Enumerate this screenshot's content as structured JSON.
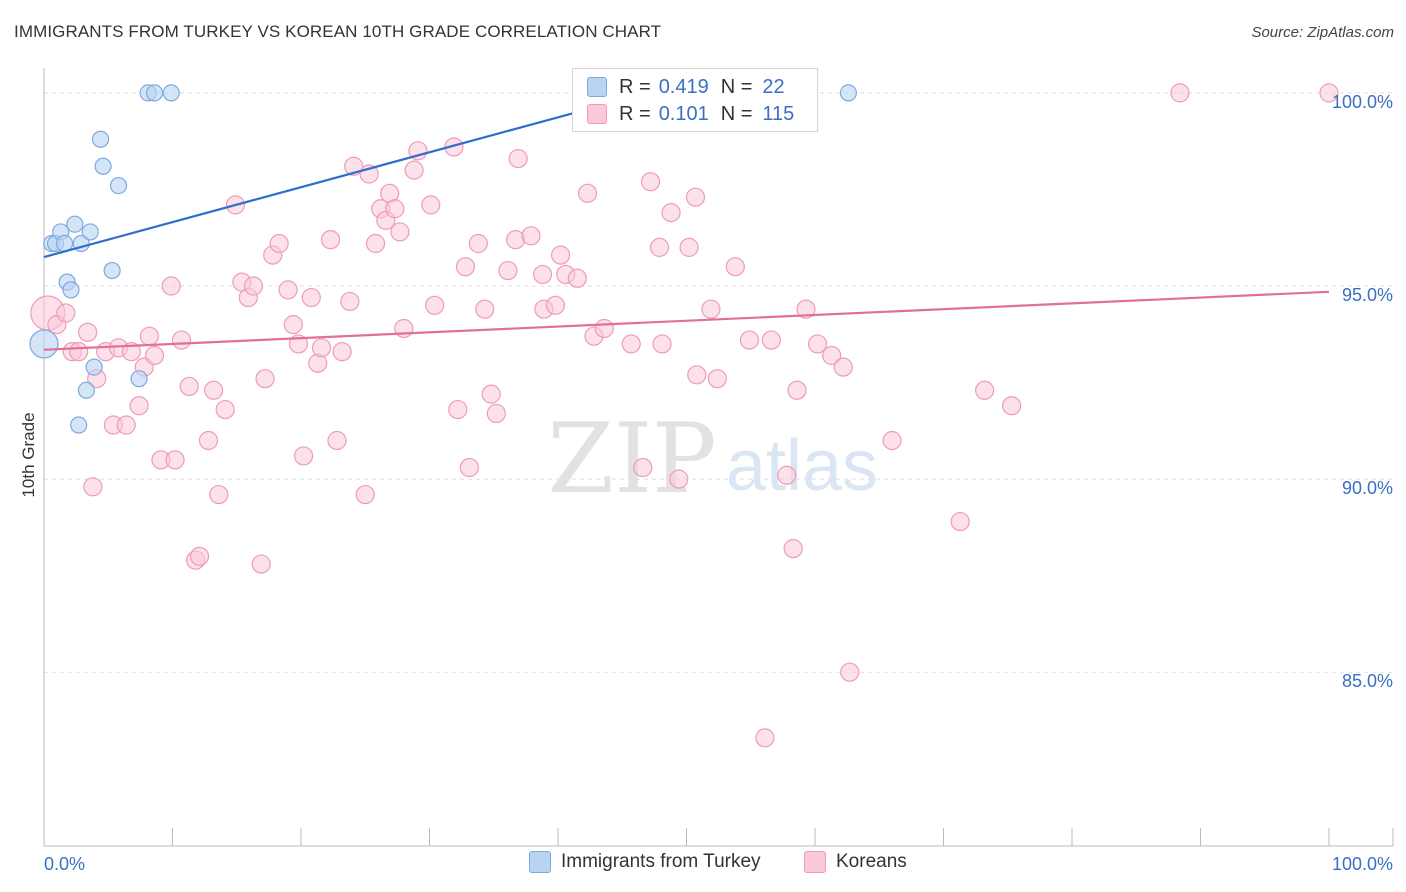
{
  "header": {
    "title": "IMMIGRANTS FROM TURKEY VS KOREAN 10TH GRADE CORRELATION CHART",
    "source": "Source: ZipAtlas.com"
  },
  "watermark": {
    "zip": "ZIP",
    "atlas": "atlas"
  },
  "stats": [
    {
      "r_label": "R =",
      "r_value": "0.419",
      "n_label": "N =",
      "n_value": "22"
    },
    {
      "r_label": "R =",
      "r_value": "0.101",
      "n_label": "N =",
      "n_value": "115"
    }
  ],
  "legend": {
    "turkey": "Immigrants from Turkey",
    "koreans": "Koreans"
  },
  "colors": {
    "turkey_fill": "#b9d3f3",
    "turkey_stroke": "#7fa8df",
    "turkey_line": "#2f6fcc",
    "koreans_fill": "#f9c9d8",
    "koreans_stroke": "#ee9cb6",
    "koreans_line": "#e0709a",
    "axis_label": "#3a6fc4",
    "grid": "#dddddd"
  },
  "chart_data": {
    "type": "scatter",
    "title": "IMMIGRANTS FROM TURKEY VS KOREAN 10TH GRADE CORRELATION CHART",
    "xlabel": "",
    "ylabel": "10th Grade",
    "xlim": [
      0,
      100
    ],
    "ylim": [
      80.5,
      100.8
    ],
    "x_tick_labels": [
      "0.0%",
      "100.0%"
    ],
    "y_ticks": [
      {
        "value": 85,
        "label": "85.0%"
      },
      {
        "value": 90,
        "label": "90.0%"
      },
      {
        "value": 95,
        "label": "95.0%"
      },
      {
        "value": 100,
        "label": "100.0%"
      }
    ],
    "grid": true,
    "series": [
      {
        "name": "Immigrants from Turkey",
        "r": 0.419,
        "n": 22,
        "trend": {
          "x0": 0,
          "y0": 95.75,
          "x1": 47.0,
          "y1": 100.0
        },
        "points": [
          [
            0.0,
            93.5
          ],
          [
            0.6,
            96.1
          ],
          [
            0.9,
            96.1
          ],
          [
            1.3,
            96.4
          ],
          [
            1.6,
            96.1
          ],
          [
            1.8,
            95.1
          ],
          [
            2.1,
            94.9
          ],
          [
            2.4,
            96.6
          ],
          [
            2.7,
            91.4
          ],
          [
            2.9,
            96.1
          ],
          [
            3.3,
            92.3
          ],
          [
            3.6,
            96.4
          ],
          [
            3.9,
            92.9
          ],
          [
            4.4,
            98.8
          ],
          [
            4.6,
            98.1
          ],
          [
            5.3,
            95.4
          ],
          [
            5.8,
            97.6
          ],
          [
            7.4,
            92.6
          ],
          [
            8.1,
            100.0
          ],
          [
            8.6,
            100.0
          ],
          [
            9.9,
            100.0
          ],
          [
            62.6,
            100.0
          ]
        ]
      },
      {
        "name": "Koreans",
        "r": 0.101,
        "n": 115,
        "trend": {
          "x0": 0,
          "y0": 93.35,
          "x1": 100,
          "y1": 94.85
        },
        "points": [
          [
            0.3,
            94.3
          ],
          [
            1.0,
            94.0
          ],
          [
            1.7,
            94.3
          ],
          [
            2.2,
            93.3
          ],
          [
            2.7,
            93.3
          ],
          [
            3.4,
            93.8
          ],
          [
            3.8,
            89.8
          ],
          [
            4.1,
            92.6
          ],
          [
            4.8,
            93.3
          ],
          [
            5.4,
            91.4
          ],
          [
            5.8,
            93.4
          ],
          [
            6.4,
            91.4
          ],
          [
            6.8,
            93.3
          ],
          [
            7.4,
            91.9
          ],
          [
            7.8,
            92.9
          ],
          [
            8.2,
            93.7
          ],
          [
            8.6,
            93.2
          ],
          [
            9.1,
            90.5
          ],
          [
            9.9,
            95.0
          ],
          [
            10.2,
            90.5
          ],
          [
            10.7,
            93.6
          ],
          [
            11.3,
            92.4
          ],
          [
            11.8,
            87.9
          ],
          [
            12.1,
            88.0
          ],
          [
            12.8,
            91.0
          ],
          [
            13.2,
            92.3
          ],
          [
            13.6,
            89.6
          ],
          [
            14.1,
            91.8
          ],
          [
            14.9,
            97.1
          ],
          [
            15.4,
            95.1
          ],
          [
            15.9,
            94.7
          ],
          [
            16.3,
            95.0
          ],
          [
            16.9,
            87.8
          ],
          [
            17.2,
            92.6
          ],
          [
            17.8,
            95.8
          ],
          [
            18.3,
            96.1
          ],
          [
            19.0,
            94.9
          ],
          [
            19.4,
            94.0
          ],
          [
            19.8,
            93.5
          ],
          [
            20.2,
            90.6
          ],
          [
            20.8,
            94.7
          ],
          [
            21.3,
            93.0
          ],
          [
            21.6,
            93.4
          ],
          [
            22.3,
            96.2
          ],
          [
            22.8,
            91.0
          ],
          [
            23.2,
            93.3
          ],
          [
            23.8,
            94.6
          ],
          [
            24.1,
            98.1
          ],
          [
            25.0,
            89.6
          ],
          [
            25.3,
            97.9
          ],
          [
            25.8,
            96.1
          ],
          [
            26.2,
            97.0
          ],
          [
            26.6,
            96.7
          ],
          [
            26.9,
            97.4
          ],
          [
            27.3,
            97.0
          ],
          [
            27.7,
            96.4
          ],
          [
            28.0,
            93.9
          ],
          [
            28.8,
            98.0
          ],
          [
            29.1,
            98.5
          ],
          [
            30.1,
            97.1
          ],
          [
            30.4,
            94.5
          ],
          [
            31.9,
            98.6
          ],
          [
            32.2,
            91.8
          ],
          [
            32.8,
            95.5
          ],
          [
            33.1,
            90.3
          ],
          [
            33.8,
            96.1
          ],
          [
            34.3,
            94.4
          ],
          [
            34.8,
            92.2
          ],
          [
            35.2,
            91.7
          ],
          [
            36.1,
            95.4
          ],
          [
            36.7,
            96.2
          ],
          [
            36.9,
            98.3
          ],
          [
            37.9,
            96.3
          ],
          [
            38.8,
            95.3
          ],
          [
            38.9,
            94.4
          ],
          [
            39.8,
            94.5
          ],
          [
            40.2,
            95.8
          ],
          [
            40.6,
            95.3
          ],
          [
            41.5,
            95.2
          ],
          [
            42.3,
            97.4
          ],
          [
            42.8,
            93.7
          ],
          [
            43.6,
            93.9
          ],
          [
            45.7,
            93.5
          ],
          [
            46.6,
            90.3
          ],
          [
            47.2,
            97.7
          ],
          [
            47.9,
            96.0
          ],
          [
            48.1,
            93.5
          ],
          [
            48.8,
            96.9
          ],
          [
            49.4,
            90.0
          ],
          [
            50.2,
            96.0
          ],
          [
            50.7,
            97.3
          ],
          [
            50.8,
            92.7
          ],
          [
            51.9,
            94.4
          ],
          [
            52.4,
            92.6
          ],
          [
            53.8,
            95.5
          ],
          [
            54.9,
            93.6
          ],
          [
            56.1,
            83.3
          ],
          [
            56.6,
            93.6
          ],
          [
            57.8,
            90.1
          ],
          [
            58.3,
            88.2
          ],
          [
            58.6,
            92.3
          ],
          [
            59.3,
            94.4
          ],
          [
            60.2,
            93.5
          ],
          [
            61.3,
            93.2
          ],
          [
            62.2,
            92.9
          ],
          [
            62.7,
            85.0
          ],
          [
            66.0,
            91.0
          ],
          [
            71.3,
            88.9
          ],
          [
            73.2,
            92.3
          ],
          [
            75.3,
            91.9
          ],
          [
            88.4,
            100.0
          ],
          [
            100.0,
            100.0
          ]
        ]
      }
    ]
  }
}
